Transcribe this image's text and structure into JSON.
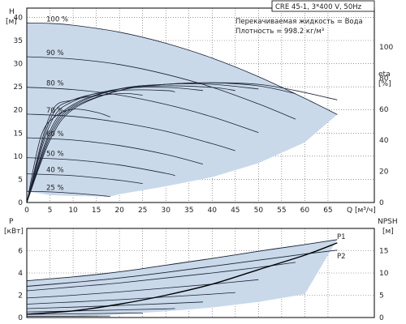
{
  "header": {
    "model": "CRE 45-1, 3*400 V, 50Hz",
    "liquid": "Перекачиваемая жидкость = Вода",
    "density": "Плотность = 998.2 кг/м³"
  },
  "colors": {
    "envelope_fill": "#c9d9ea",
    "curve": "#1a2233",
    "frame": "#000000",
    "grid": "#5a5a5a"
  },
  "chart_data": [
    {
      "type": "line",
      "name": "head",
      "ylabel_left": "H\n[м]",
      "ylabel_right": "eta\n[%]",
      "xlabel": "Q [м³/ч]",
      "xlim": [
        0,
        75
      ],
      "ylim": [
        0,
        42
      ],
      "yticks": [
        "0",
        "5",
        "10",
        "15",
        "20",
        "25",
        "30",
        "35",
        "40"
      ],
      "xticks": [
        "0",
        "5",
        "10",
        "15",
        "20",
        "25",
        "30",
        "35",
        "40",
        "45",
        "50",
        "55",
        "60",
        "65"
      ],
      "eta_ticks": [
        "0",
        "20",
        "40",
        "60",
        "80",
        "100"
      ],
      "eta_range": [
        0,
        125
      ],
      "speed_labels": [
        "100 %",
        "90 %",
        "80 %",
        "70 %",
        "60 %",
        "50 %",
        "40 %",
        "25 %"
      ],
      "speed_curves": [
        {
          "pct": 100,
          "x": [
            0,
            5,
            10,
            20,
            30,
            40,
            50,
            60,
            67
          ],
          "y": [
            38.8,
            38.7,
            38.3,
            36.8,
            34.4,
            31.2,
            27.2,
            22.5,
            19.0
          ]
        },
        {
          "pct": 90,
          "x": [
            0,
            10,
            20,
            30,
            40,
            50,
            58
          ],
          "y": [
            31.5,
            31.0,
            29.8,
            27.7,
            24.9,
            21.3,
            18.0
          ]
        },
        {
          "pct": 80,
          "x": [
            0,
            10,
            20,
            30,
            40,
            50
          ],
          "y": [
            24.9,
            24.4,
            23.2,
            21.2,
            18.5,
            15.1
          ]
        },
        {
          "pct": 70,
          "x": [
            0,
            10,
            20,
            30,
            40,
            45
          ],
          "y": [
            19.1,
            18.6,
            17.3,
            15.4,
            12.7,
            11.2
          ]
        },
        {
          "pct": 60,
          "x": [
            0,
            10,
            20,
            30,
            38
          ],
          "y": [
            14.0,
            13.5,
            12.3,
            10.4,
            8.3
          ]
        },
        {
          "pct": 50,
          "x": [
            0,
            10,
            20,
            30,
            32
          ],
          "y": [
            9.7,
            9.2,
            8.1,
            6.3,
            5.8
          ]
        },
        {
          "pct": 40,
          "x": [
            0,
            10,
            20,
            25
          ],
          "y": [
            6.2,
            5.8,
            4.8,
            4.1
          ]
        },
        {
          "pct": 25,
          "x": [
            0,
            5,
            10,
            15,
            18
          ],
          "y": [
            2.4,
            2.3,
            2.0,
            1.6,
            1.3
          ]
        }
      ],
      "eta_curves": [
        {
          "x": [
            0,
            5,
            10,
            20,
            30,
            40,
            50,
            58,
            67
          ],
          "y": [
            0,
            40,
            60,
            72,
            76,
            77,
            76,
            72,
            66
          ]
        },
        {
          "x": [
            0,
            5,
            10,
            20,
            30,
            40,
            50,
            58
          ],
          "y": [
            0,
            42,
            61,
            72,
            76,
            77,
            75,
            70
          ]
        },
        {
          "x": [
            0,
            5,
            10,
            20,
            30,
            40,
            50
          ],
          "y": [
            0,
            44,
            62,
            73,
            76,
            76,
            73
          ]
        },
        {
          "x": [
            0,
            5,
            10,
            20,
            30,
            40,
            45
          ],
          "y": [
            0,
            46,
            63,
            73,
            75,
            74,
            72
          ]
        },
        {
          "x": [
            0,
            5,
            10,
            20,
            30,
            38
          ],
          "y": [
            0,
            50,
            65,
            73,
            74,
            72
          ]
        },
        {
          "x": [
            0,
            5,
            10,
            20,
            30,
            32
          ],
          "y": [
            0,
            53,
            66,
            72,
            72,
            71
          ]
        },
        {
          "x": [
            0,
            5,
            10,
            20,
            25
          ],
          "y": [
            0,
            56,
            66,
            70,
            69
          ]
        },
        {
          "x": [
            0,
            3,
            6,
            10,
            15,
            18
          ],
          "y": [
            0,
            42,
            55,
            60,
            58,
            55
          ]
        }
      ],
      "envelope": {
        "x": [
          0,
          5,
          10,
          20,
          30,
          40,
          50,
          60,
          67,
          60,
          50,
          40,
          30,
          20,
          18,
          10,
          5,
          0
        ],
        "y": [
          38.8,
          38.7,
          38.3,
          36.8,
          34.4,
          31.2,
          27.2,
          22.5,
          19.0,
          13.0,
          8.5,
          5.5,
          3.5,
          1.8,
          1.3,
          1.4,
          1.6,
          2.4
        ]
      }
    },
    {
      "type": "line",
      "name": "power",
      "ylabel_left": "P\n[кВт]",
      "ylabel_right": "NPSH\n[м]",
      "xlim": [
        0,
        75
      ],
      "ylim": [
        0,
        8
      ],
      "yticks": [
        "0",
        "2",
        "4",
        "6"
      ],
      "npsh_ticks": [
        "0",
        "5",
        "10",
        "15"
      ],
      "npsh_range": [
        0,
        20
      ],
      "series_labels": [
        "P1",
        "P2"
      ],
      "p1": {
        "x": [
          0,
          10,
          20,
          30,
          40,
          50,
          60,
          67
        ],
        "y": [
          3.3,
          3.65,
          4.1,
          4.7,
          5.3,
          5.95,
          6.55,
          7.0
        ]
      },
      "p2": {
        "x": [
          0,
          10,
          20,
          30,
          40,
          50,
          60,
          67
        ],
        "y": [
          2.8,
          3.15,
          3.55,
          4.05,
          4.6,
          5.15,
          5.7,
          6.05
        ]
      },
      "inner_power_curves": [
        {
          "x": [
            0,
            10,
            20,
            30,
            40,
            50,
            58
          ],
          "y": [
            2.4,
            2.75,
            3.1,
            3.55,
            4.0,
            4.5,
            4.95
          ]
        },
        {
          "x": [
            0,
            10,
            20,
            30,
            40,
            50
          ],
          "y": [
            1.75,
            2.0,
            2.3,
            2.65,
            3.0,
            3.4
          ]
        },
        {
          "x": [
            0,
            10,
            20,
            30,
            40,
            45
          ],
          "y": [
            1.2,
            1.4,
            1.6,
            1.85,
            2.1,
            2.25
          ]
        },
        {
          "x": [
            0,
            10,
            20,
            30,
            38
          ],
          "y": [
            0.8,
            0.93,
            1.08,
            1.25,
            1.4
          ]
        },
        {
          "x": [
            0,
            10,
            20,
            30,
            32
          ],
          "y": [
            0.5,
            0.58,
            0.68,
            0.78,
            0.8
          ]
        },
        {
          "x": [
            0,
            10,
            20,
            25
          ],
          "y": [
            0.28,
            0.33,
            0.38,
            0.41
          ]
        },
        {
          "x": [
            0,
            10,
            18
          ],
          "y": [
            0.1,
            0.12,
            0.14
          ]
        }
      ],
      "npsh": {
        "x": [
          0,
          10,
          20,
          30,
          40,
          50,
          60,
          67
        ],
        "y": [
          0.3,
          0.6,
          1.2,
          2.0,
          3.0,
          4.3,
          5.6,
          6.7
        ]
      },
      "envelope": {
        "x": [
          0,
          10,
          20,
          30,
          40,
          50,
          60,
          67,
          60,
          50,
          40,
          30,
          20,
          10,
          0
        ],
        "y": [
          3.3,
          3.65,
          4.1,
          4.7,
          5.3,
          5.95,
          6.55,
          7.0,
          2.1,
          1.4,
          0.9,
          0.55,
          0.3,
          0.1,
          0.05
        ]
      }
    }
  ]
}
